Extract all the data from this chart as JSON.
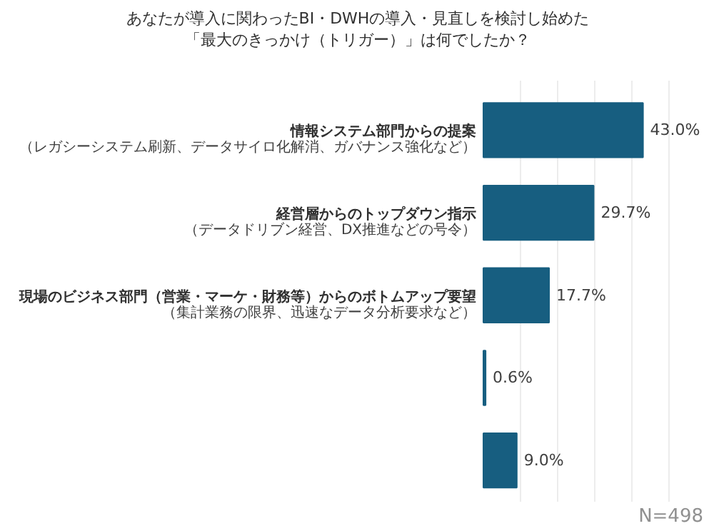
{
  "chart_data": {
    "type": "bar",
    "orientation": "horizontal",
    "title": "あなたが導入に関わったBI・DWHの導入・見直しを検討し始めた",
    "subtitle": "「最大のきっかけ（トリガー）」は何でしたか？",
    "categories": [
      "情報システム部門からの提案",
      "経営層からのトップダウン指示",
      "現場のビジネス部門（営業・マーケ・財務等）からのボトムアップ要望",
      null,
      null
    ],
    "values": [
      43.0,
      29.7,
      17.7,
      0.6,
      9.0
    ],
    "value_labels": [
      "43.0%",
      "29.7%",
      "17.7%",
      "0.6%",
      "9.0%"
    ],
    "color": "#175e80",
    "xlim": [
      0,
      50
    ],
    "xticks": [
      {
        "value": 10,
        "label": null
      },
      {
        "value": 20,
        "label": null
      },
      {
        "value": 30,
        "label": null
      },
      {
        "value": 40,
        "label": null
      },
      {
        "value": 50,
        "label": null
      }
    ],
    "grid": "x",
    "tick_labels": false,
    "annotations": [
      "（レガシーシステム刷新、データサイロ化解消、ガバナンス強化など）",
      "（データドリブン経営、DX推進などの号令）",
      "（集計業務の限界、迅速なデータ分析要求など）",
      "N=498"
    ]
  }
}
